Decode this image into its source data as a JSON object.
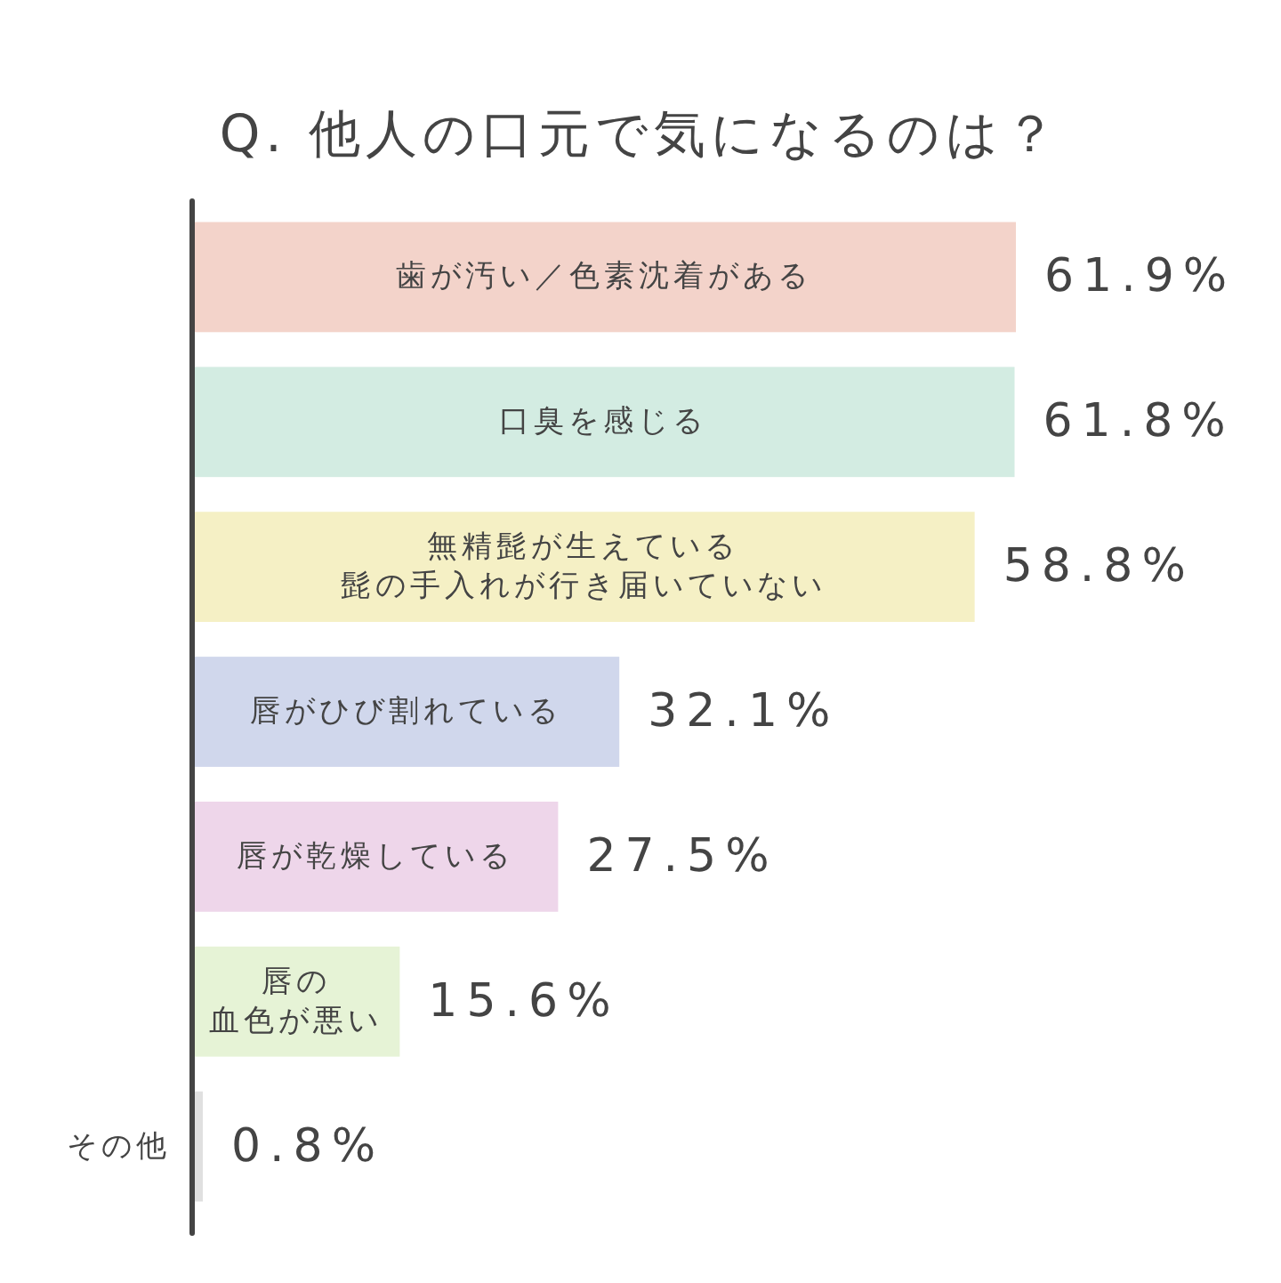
{
  "chart_data": {
    "type": "bar",
    "orientation": "horizontal",
    "title": "Q. 他人の口元で気になるのは？",
    "categories": [
      "歯が汚い／色素沈着がある",
      "口臭を感じる",
      "無精髭が生えている髭の手入れが行き届いていない",
      "唇がひび割れている",
      "唇が乾燥している",
      "唇の血色が悪い",
      "その他"
    ],
    "values": [
      61.9,
      61.8,
      58.8,
      32.1,
      27.5,
      15.6,
      0.8
    ],
    "value_labels": [
      "61.9%",
      "61.8%",
      "58.8%",
      "32.1%",
      "27.5%",
      "15.6%",
      "0.8%"
    ],
    "colors": [
      "#f3d3ca",
      "#d3ece2",
      "#f5f0c5",
      "#d0d7ec",
      "#eed6ea",
      "#e6f3d6",
      "#e0e0e0"
    ]
  }
}
